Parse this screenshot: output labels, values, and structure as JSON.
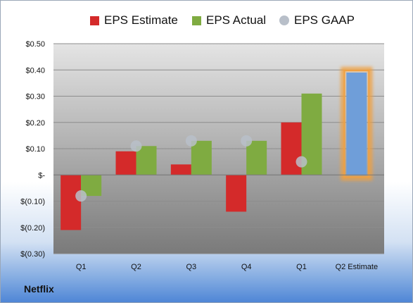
{
  "company": "Netflix",
  "colors": {
    "estimate": "#d42a2a",
    "actual": "#7fab41",
    "gaap": "#b8bfc9",
    "q2_estimate": "#6f9ed9",
    "highlight": "#f0a040"
  },
  "chart_data": {
    "type": "bar",
    "categories": [
      "Q1",
      "Q2",
      "Q3",
      "Q4",
      "Q1",
      "Q2 Estimate"
    ],
    "ytick_labels": [
      "$0.50",
      "$0.40",
      "$0.30",
      "$0.20",
      "$0.10",
      "$-",
      "$(0.10)",
      "$(0.20)",
      "$(0.30)"
    ],
    "ylim": [
      -0.3,
      0.5
    ],
    "grid": true,
    "legend_position": "top",
    "series": [
      {
        "name": "EPS Estimate",
        "values": [
          -0.21,
          0.09,
          0.04,
          -0.14,
          0.2,
          null
        ]
      },
      {
        "name": "EPS Actual",
        "values": [
          -0.08,
          0.11,
          0.13,
          0.13,
          0.31,
          0.39
        ]
      },
      {
        "name": "EPS GAAP",
        "values": [
          -0.08,
          0.11,
          0.13,
          0.13,
          0.05,
          null
        ]
      }
    ],
    "highlighted_category": "Q2 Estimate"
  }
}
